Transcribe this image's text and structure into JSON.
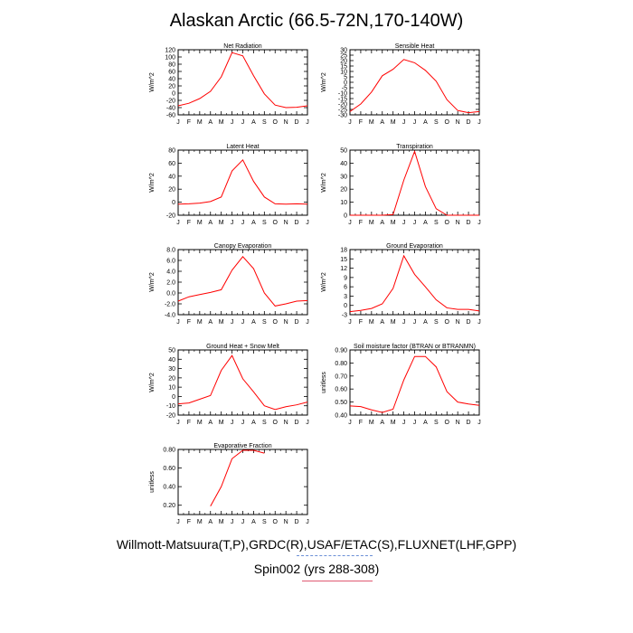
{
  "title": "Alaskan Arctic (66.5-72N,170-140W)",
  "footer": {
    "sources": "Willmott-Matsuura(T,P),GRDC(R),USAF/ETAC(S),FLUXNET(LHF,GPP)",
    "run": "Spin002 (yrs 288-308)"
  },
  "colors": {
    "series": "#ff0000",
    "axis": "#000000",
    "sources_line": "#6a8fd6",
    "run_line": "#e05a72"
  },
  "chart_data": [
    {
      "id": "net-radiation",
      "type": "line",
      "title": "Net Radiation",
      "ylabel": "W/m^2",
      "x": [
        "J",
        "F",
        "M",
        "A",
        "M",
        "J",
        "J",
        "A",
        "S",
        "O",
        "N",
        "D",
        "J"
      ],
      "ylim": [
        -60,
        120
      ],
      "yticks": [
        "120",
        "100",
        "80",
        "60",
        "40",
        "20",
        "0",
        "-20",
        "-40",
        "-60"
      ],
      "ytick_values": [
        120,
        100,
        80,
        60,
        40,
        20,
        0,
        -20,
        -40,
        -60
      ],
      "series": [
        {
          "values": [
            -35,
            -28,
            -15,
            5,
            45,
            112,
            103,
            48,
            -2,
            -33,
            -40,
            -39,
            -35
          ]
        }
      ]
    },
    {
      "id": "sensible-heat",
      "type": "line",
      "title": "Sensible Heat",
      "ylabel": "W/m^2",
      "x": [
        "J",
        "F",
        "M",
        "A",
        "M",
        "J",
        "J",
        "A",
        "S",
        "O",
        "N",
        "D",
        "J"
      ],
      "ylim": [
        -30,
        30
      ],
      "yticks": [
        "30",
        "25",
        "20",
        "15",
        "10",
        "5",
        "0",
        "-5",
        "-10",
        "-15",
        "-20",
        "-25",
        "-30"
      ],
      "ytick_values": [
        30,
        25,
        20,
        15,
        10,
        5,
        0,
        -5,
        -10,
        -15,
        -20,
        -25,
        -30
      ],
      "series": [
        {
          "values": [
            -27,
            -20,
            -9,
            6,
            12,
            21,
            18,
            11,
            1,
            -16,
            -26,
            -28,
            -27
          ]
        }
      ]
    },
    {
      "id": "latent-heat",
      "type": "line",
      "title": "Latent Heat",
      "ylabel": "W/m^2",
      "x": [
        "J",
        "F",
        "M",
        "A",
        "M",
        "J",
        "J",
        "A",
        "S",
        "O",
        "N",
        "D",
        "J"
      ],
      "ylim": [
        -20,
        80
      ],
      "yticks": [
        "80",
        "60",
        "40",
        "20",
        "0",
        "-20"
      ],
      "ytick_values": [
        80,
        60,
        40,
        20,
        0,
        -20
      ],
      "series": [
        {
          "values": [
            -3,
            -2.5,
            -1.5,
            1,
            8,
            48,
            65,
            32,
            8,
            -2.5,
            -3,
            -2.5,
            -3
          ]
        }
      ]
    },
    {
      "id": "transpiration",
      "type": "line",
      "title": "Transpiration",
      "ylabel": "W/m^2",
      "x": [
        "J",
        "F",
        "M",
        "A",
        "M",
        "J",
        "J",
        "A",
        "S",
        "O",
        "N",
        "D",
        "J"
      ],
      "ylim": [
        0,
        50
      ],
      "yticks": [
        "50",
        "40",
        "30",
        "20",
        "10",
        "0"
      ],
      "ytick_values": [
        50,
        40,
        30,
        20,
        10,
        0
      ],
      "series": [
        {
          "values": [
            0,
            0,
            0,
            0,
            0.5,
            27,
            49,
            22,
            5,
            0,
            0,
            0,
            0
          ]
        }
      ]
    },
    {
      "id": "canopy-evaporation",
      "type": "line",
      "title": "Canopy Evaporation",
      "ylabel": "W/m^2",
      "x": [
        "J",
        "F",
        "M",
        "A",
        "M",
        "J",
        "J",
        "A",
        "S",
        "O",
        "N",
        "D",
        "J"
      ],
      "ylim": [
        -4,
        8
      ],
      "yticks": [
        "8.0",
        "6.0",
        "4.0",
        "2.0",
        "0.0",
        "-2.0",
        "-4.0"
      ],
      "ytick_values": [
        8,
        6,
        4,
        2,
        0,
        -2,
        -4
      ],
      "series": [
        {
          "values": [
            -1.5,
            -0.7,
            -0.3,
            0.1,
            0.6,
            4.2,
            6.7,
            4.5,
            0,
            -2.4,
            -2,
            -1.5,
            -1.4
          ]
        }
      ]
    },
    {
      "id": "ground-evaporation",
      "type": "line",
      "title": "Ground Evaporation",
      "ylabel": "W/m^2",
      "x": [
        "J",
        "F",
        "M",
        "A",
        "M",
        "J",
        "J",
        "A",
        "S",
        "O",
        "N",
        "D",
        "J"
      ],
      "ylim": [
        -3,
        18
      ],
      "yticks": [
        "18",
        "15",
        "12",
        "9",
        "6",
        "3",
        "0",
        "-3"
      ],
      "ytick_values": [
        18,
        15,
        12,
        9,
        6,
        3,
        0,
        -3
      ],
      "series": [
        {
          "values": [
            -2,
            -1.6,
            -1,
            0.5,
            5.5,
            16,
            10,
            6,
            1.8,
            -0.8,
            -1.3,
            -1.3,
            -1.8
          ]
        }
      ]
    },
    {
      "id": "ground-heat-snow-melt",
      "type": "line",
      "title": "Ground Heat + Snow Melt",
      "ylabel": "W/m^2",
      "x": [
        "J",
        "F",
        "M",
        "A",
        "M",
        "J",
        "J",
        "A",
        "S",
        "O",
        "N",
        "D",
        "J"
      ],
      "ylim": [
        -20,
        50
      ],
      "yticks": [
        "50",
        "40",
        "30",
        "20",
        "10",
        "0",
        "-10",
        "-20"
      ],
      "ytick_values": [
        50,
        40,
        30,
        20,
        10,
        0,
        -10,
        -20
      ],
      "series": [
        {
          "values": [
            -8,
            -7,
            -3,
            1,
            28,
            44,
            19,
            5,
            -10,
            -14,
            -11,
            -9,
            -6
          ]
        }
      ]
    },
    {
      "id": "soil-moisture-factor",
      "type": "line",
      "title": "Soil moisture factor (BTRAN or BTRANMN)",
      "ylabel": "unitless",
      "x": [
        "J",
        "F",
        "M",
        "A",
        "M",
        "J",
        "J",
        "A",
        "S",
        "O",
        "N",
        "D",
        "J"
      ],
      "ylim": [
        0.4,
        0.9
      ],
      "yticks": [
        "0.90",
        "0.80",
        "0.70",
        "0.60",
        "0.50",
        "0.40"
      ],
      "ytick_values": [
        0.9,
        0.8,
        0.7,
        0.6,
        0.5,
        0.4
      ],
      "series": [
        {
          "values": [
            0.47,
            0.465,
            0.44,
            0.42,
            0.445,
            0.67,
            0.85,
            0.85,
            0.77,
            0.58,
            0.5,
            0.485,
            0.475
          ]
        }
      ]
    },
    {
      "id": "evaporative-fraction",
      "type": "line",
      "title": "Evaporative Fraction",
      "ylabel": "unitless",
      "x": [
        "J",
        "F",
        "M",
        "A",
        "M",
        "J",
        "J",
        "A",
        "S",
        "O",
        "N",
        "D",
        "J"
      ],
      "ylim": [
        0.1,
        0.8
      ],
      "yticks": [
        "0.80",
        "0.60",
        "0.40",
        "0.20"
      ],
      "ytick_values": [
        0.8,
        0.6,
        0.4,
        0.2
      ],
      "series": [
        {
          "values": [
            null,
            null,
            null,
            0.19,
            0.4,
            0.7,
            0.79,
            0.79,
            0.76,
            null,
            null,
            null,
            null
          ]
        }
      ]
    }
  ]
}
